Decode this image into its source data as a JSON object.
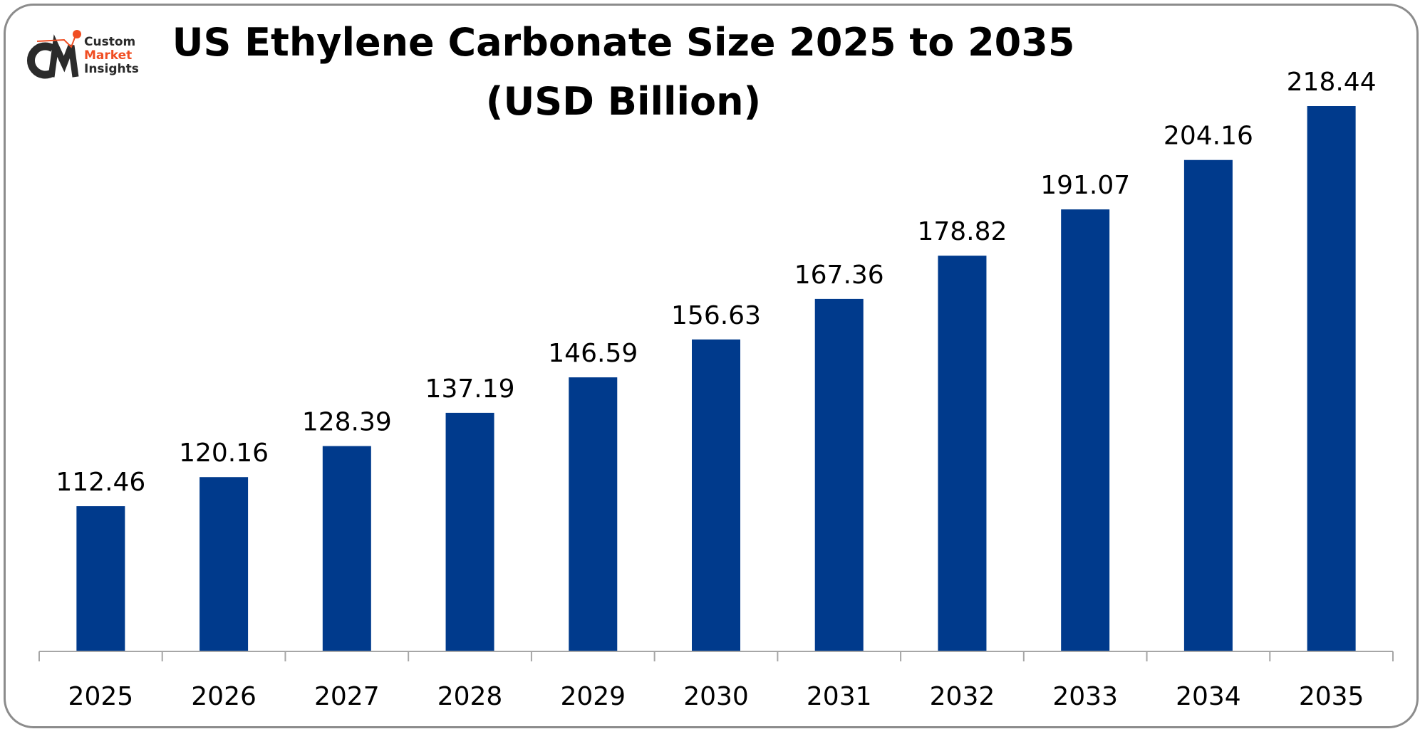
{
  "logo": {
    "text_lines": [
      "Custom",
      "Market",
      "Insights"
    ],
    "mark": "CMI",
    "colors": {
      "dark": "#2b2b2b",
      "accent": "#f04e23"
    }
  },
  "chart_data": {
    "type": "bar",
    "title_line1": "US Ethylene Carbonate Size 2025 to 2035",
    "title_line2": "(USD Billion)",
    "categories": [
      "2025",
      "2026",
      "2027",
      "2028",
      "2029",
      "2030",
      "2031",
      "2032",
      "2033",
      "2034",
      "2035"
    ],
    "values": [
      112.46,
      120.16,
      128.39,
      137.19,
      146.59,
      156.63,
      167.36,
      178.82,
      191.07,
      204.16,
      218.44
    ],
    "value_labels": [
      "112.46",
      "120.16",
      "128.39",
      "137.19",
      "146.59",
      "156.63",
      "167.36",
      "178.82",
      "191.07",
      "204.16",
      "218.44"
    ],
    "xlabel": "",
    "ylabel": "",
    "ylim": [
      74,
      225
    ],
    "grid": false,
    "legend": "none",
    "bar_color": "#003a8c"
  }
}
